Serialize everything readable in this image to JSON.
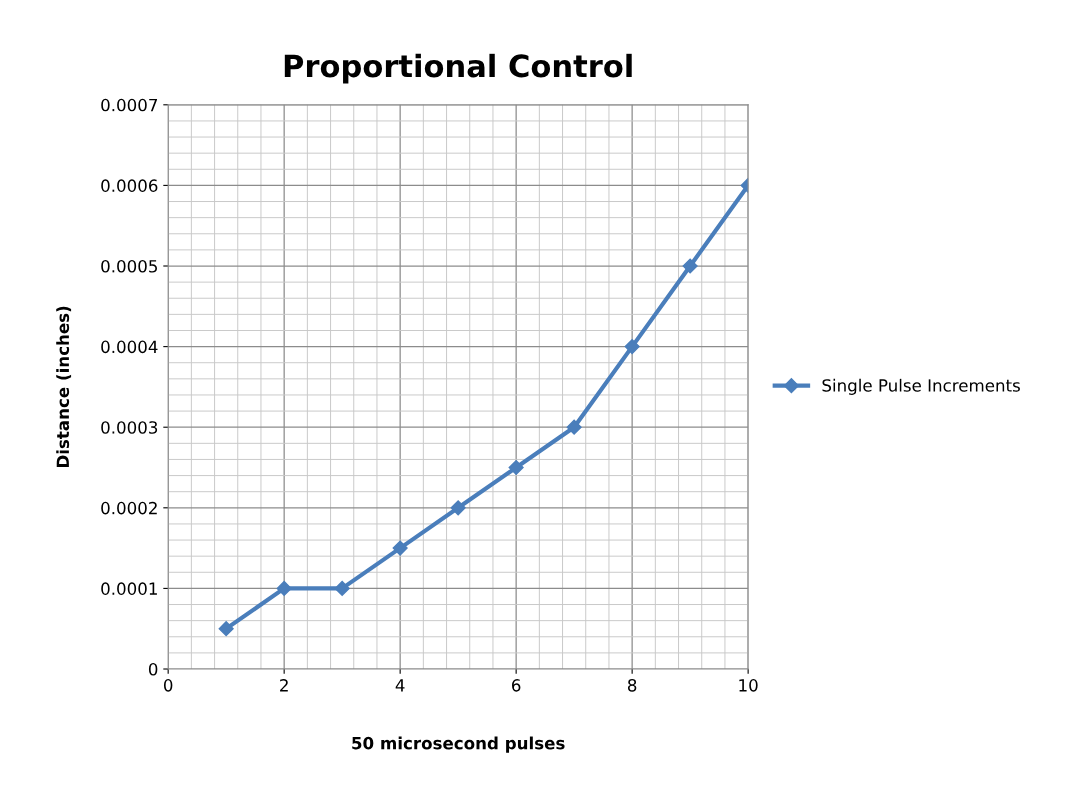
{
  "chart_data": {
    "type": "line",
    "title": "Proportional Control",
    "xlabel": "50 microsecond pulses",
    "ylabel": "Distance (inches)",
    "x": [
      1,
      2,
      3,
      4,
      5,
      6,
      7,
      8,
      9,
      10
    ],
    "series": [
      {
        "name": "Single Pulse Increments",
        "color": "#4a7ebb",
        "values": [
          5e-05,
          0.0001,
          0.0001,
          0.00015,
          0.0002,
          0.00025,
          0.0003,
          0.0004,
          0.0005,
          0.0006
        ]
      }
    ],
    "xlim": [
      0,
      10
    ],
    "xticks": [
      0,
      2,
      4,
      6,
      8,
      10
    ],
    "ylim": [
      0,
      0.0007
    ],
    "yticks": [
      0,
      0.0001,
      0.0002,
      0.0003,
      0.0004,
      0.0005,
      0.0006,
      0.0007
    ],
    "grid": true,
    "legend": "right",
    "marker": "diamond",
    "line_style": "solid"
  }
}
